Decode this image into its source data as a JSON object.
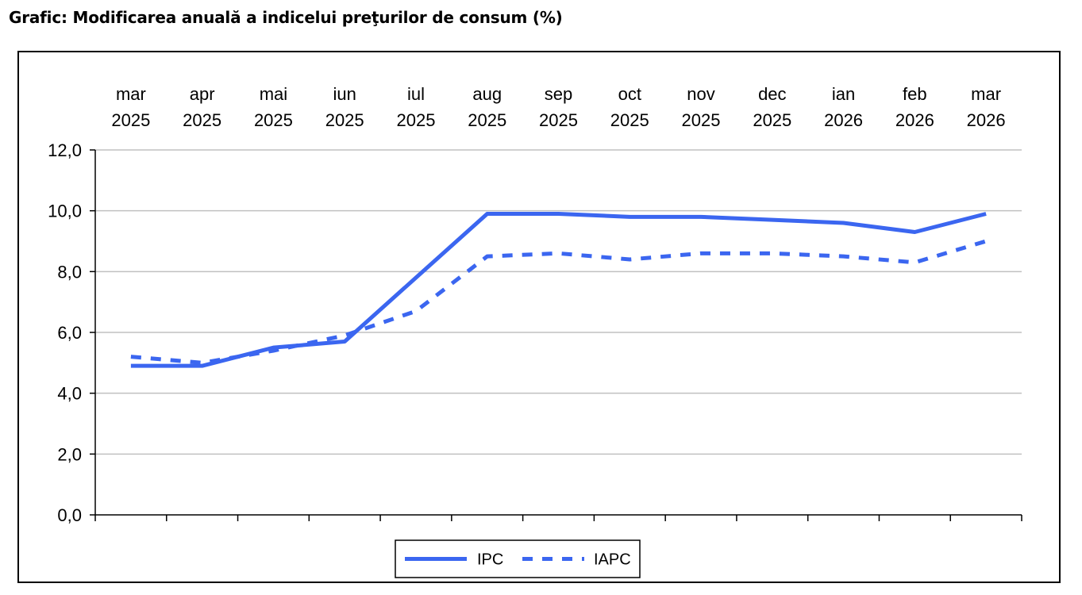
{
  "chart_data": {
    "type": "line",
    "title": "Grafic: Modificarea anuală a indicelui preţurilor de consum (%)",
    "categories": [
      [
        "mar",
        "2025"
      ],
      [
        "apr",
        "2025"
      ],
      [
        "mai",
        "2025"
      ],
      [
        "iun",
        "2025"
      ],
      [
        "iul",
        "2025"
      ],
      [
        "aug",
        "2025"
      ],
      [
        "sep",
        "2025"
      ],
      [
        "oct",
        "2025"
      ],
      [
        "nov",
        "2025"
      ],
      [
        "dec",
        "2025"
      ],
      [
        "ian",
        "2026"
      ],
      [
        "feb",
        "2026"
      ],
      [
        "mar",
        "2026"
      ]
    ],
    "series": [
      {
        "name": "IPC",
        "style": "solid",
        "color": "#3b66f0",
        "values": [
          4.9,
          4.9,
          5.5,
          5.7,
          7.8,
          9.9,
          9.9,
          9.8,
          9.8,
          9.7,
          9.6,
          9.3,
          9.9
        ]
      },
      {
        "name": "IAPC",
        "style": "dashed",
        "color": "#3b66f0",
        "values": [
          5.2,
          5.0,
          5.4,
          5.9,
          6.7,
          8.5,
          8.6,
          8.4,
          8.6,
          8.6,
          8.5,
          8.3,
          9.0
        ]
      }
    ],
    "ylim": [
      0,
      12
    ],
    "yticks": [
      "0,0",
      "2,0",
      "4,0",
      "6,0",
      "8,0",
      "10,0",
      "12,0"
    ],
    "x_axis_position": "top",
    "grid": true,
    "legend_position": "bottom-center"
  }
}
